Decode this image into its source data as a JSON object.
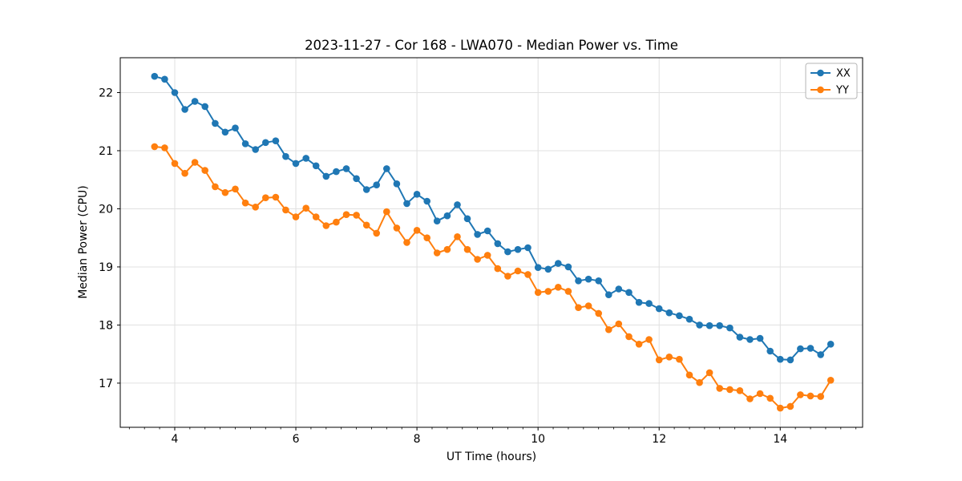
{
  "chart_data": {
    "type": "line",
    "title": "2023-11-27 - Cor 168 - LWA070 - Median Power vs. Time",
    "xlabel": "UT Time (hours)",
    "ylabel": "Median Power (CPU)",
    "xlim": [
      3.1,
      15.36
    ],
    "ylim": [
      16.24,
      22.6
    ],
    "x_ticks": [
      4,
      6,
      8,
      10,
      12,
      14
    ],
    "x_minor_step": 0.25,
    "y_ticks": [
      17,
      18,
      19,
      20,
      21,
      22
    ],
    "grid": true,
    "grid_color": "#e0e0e0",
    "spine_color": "#000000",
    "legend_position": "upper right",
    "x": [
      3.667,
      3.833,
      4.0,
      4.167,
      4.333,
      4.5,
      4.667,
      4.833,
      5.0,
      5.167,
      5.333,
      5.5,
      5.667,
      5.833,
      6.0,
      6.167,
      6.333,
      6.5,
      6.667,
      6.833,
      7.0,
      7.167,
      7.333,
      7.5,
      7.667,
      7.833,
      8.0,
      8.167,
      8.333,
      8.5,
      8.667,
      8.833,
      9.0,
      9.167,
      9.333,
      9.5,
      9.667,
      9.833,
      10.0,
      10.167,
      10.333,
      10.5,
      10.667,
      10.833,
      11.0,
      11.167,
      11.333,
      11.5,
      11.667,
      11.833,
      12.0,
      12.167,
      12.333,
      12.5,
      12.667,
      12.833,
      13.0,
      13.167,
      13.333,
      13.5,
      13.667,
      13.833,
      14.0,
      14.167,
      14.333,
      14.5,
      14.667,
      14.833
    ],
    "series": [
      {
        "name": "XX",
        "color": "#1f77b4",
        "values": [
          22.28,
          22.23,
          22.0,
          21.71,
          21.85,
          21.76,
          21.47,
          21.32,
          21.39,
          21.12,
          21.02,
          21.14,
          21.17,
          20.9,
          20.78,
          20.87,
          20.74,
          20.56,
          20.64,
          20.69,
          20.52,
          20.33,
          20.41,
          20.69,
          20.43,
          20.09,
          20.25,
          20.13,
          19.79,
          19.88,
          20.07,
          19.83,
          19.56,
          19.62,
          19.4,
          19.26,
          19.3,
          19.33,
          18.99,
          18.96,
          19.06,
          19.0,
          18.76,
          18.79,
          18.76,
          18.52,
          18.62,
          18.56,
          18.39,
          18.37,
          18.28,
          18.21,
          18.16,
          18.1,
          18.0,
          17.99,
          17.99,
          17.95,
          17.79,
          17.75,
          17.77,
          17.55,
          17.41,
          17.4,
          17.59,
          17.6,
          17.49,
          17.67
        ]
      },
      {
        "name": "YY",
        "color": "#ff7f0e",
        "values": [
          21.07,
          21.05,
          20.78,
          20.61,
          20.8,
          20.66,
          20.38,
          20.28,
          20.34,
          20.1,
          20.03,
          20.19,
          20.2,
          19.98,
          19.86,
          20.01,
          19.86,
          19.71,
          19.77,
          19.9,
          19.89,
          19.72,
          19.58,
          19.95,
          19.67,
          19.42,
          19.63,
          19.5,
          19.24,
          19.3,
          19.52,
          19.3,
          19.13,
          19.2,
          18.97,
          18.84,
          18.93,
          18.87,
          18.56,
          18.58,
          18.65,
          18.58,
          18.3,
          18.33,
          18.2,
          17.92,
          18.02,
          17.8,
          17.67,
          17.75,
          17.4,
          17.45,
          17.41,
          17.14,
          17.01,
          17.18,
          16.91,
          16.89,
          16.87,
          16.73,
          16.82,
          16.74,
          16.57,
          16.6,
          16.8,
          16.78,
          16.77,
          17.05
        ]
      }
    ]
  }
}
